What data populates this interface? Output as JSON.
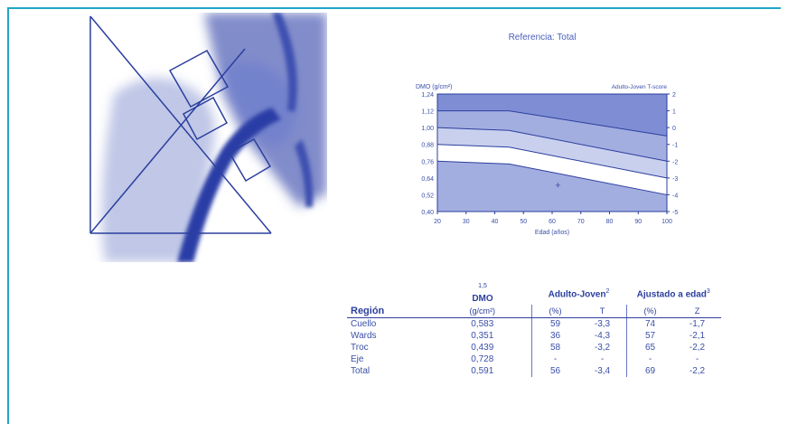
{
  "chart": {
    "title": "Referencia: Total",
    "y_left_label": "DMO (g/cm²)",
    "y_right_label": "Adulto-Joven T-score",
    "x_label": "Edad (años)",
    "y_left_ticks": [
      "1,24",
      "1,12",
      "1,00",
      "0,88",
      "0,76",
      "0,64",
      "0,52",
      "0,40"
    ],
    "y_right_ticks": [
      "2",
      "1",
      "0",
      "-1",
      "-2",
      "-3",
      "-4",
      "-5"
    ],
    "x_ticks": [
      "20",
      "30",
      "40",
      "50",
      "60",
      "70",
      "80",
      "90",
      "100"
    ],
    "marker": "+"
  },
  "chart_data": {
    "type": "area",
    "title": "Referencia: Total",
    "xlabel": "Edad (años)",
    "ylabel": "DMO (g/cm²)",
    "xlim": [
      20,
      100
    ],
    "ylim": [
      0.4,
      1.24
    ],
    "y2label": "Adulto-Joven T-score",
    "y2lim": [
      -5,
      2
    ],
    "band_boundaries": [
      {
        "x": [
          20,
          45,
          100
        ],
        "y": [
          1.12,
          1.12,
          0.94
        ]
      },
      {
        "x": [
          20,
          45,
          100
        ],
        "y": [
          1.0,
          0.98,
          0.76
        ]
      },
      {
        "x": [
          20,
          45,
          100
        ],
        "y": [
          0.88,
          0.86,
          0.64
        ]
      },
      {
        "x": [
          20,
          45,
          100
        ],
        "y": [
          0.76,
          0.74,
          0.52
        ]
      }
    ],
    "points": [
      {
        "x": 62,
        "y": 0.591
      }
    ]
  },
  "table": {
    "headers": {
      "region": "Región",
      "dmo": "DMO",
      "dmo_sup": "1,5",
      "dmo_unit": "(g/cm²)",
      "adulto_joven": "Adulto-Joven",
      "adulto_joven_sup": "2",
      "ajustado": "Ajustado a edad",
      "ajustado_sup": "3",
      "pct": "(%)",
      "t": "T",
      "pct2": "(%)",
      "z": "Z"
    },
    "rows": [
      {
        "region": "Cuello",
        "dmo": "0,583",
        "aj_pct": "59",
        "t": "-3,3",
        "ae_pct": "74",
        "z": "-1,7"
      },
      {
        "region": "Wards",
        "dmo": "0,351",
        "aj_pct": "36",
        "t": "-4,3",
        "ae_pct": "57",
        "z": "-2,1"
      },
      {
        "region": "Troc",
        "dmo": "0,439",
        "aj_pct": "58",
        "t": "-3,2",
        "ae_pct": "65",
        "z": "-2,2"
      },
      {
        "region": "Eje",
        "dmo": "0,728",
        "aj_pct": "-",
        "t": "-",
        "ae_pct": "-",
        "z": "-"
      },
      {
        "region": "Total",
        "dmo": "0,591",
        "aj_pct": "56",
        "t": "-3,4",
        "ae_pct": "69",
        "z": "-2,2"
      }
    ]
  },
  "colors": {
    "frame": "#1fa5c8",
    "ink": "#2b3f9e",
    "band_dark": "#7f8ed4",
    "band_mid": "#a3aee0",
    "band_light": "#c9d0ee"
  }
}
